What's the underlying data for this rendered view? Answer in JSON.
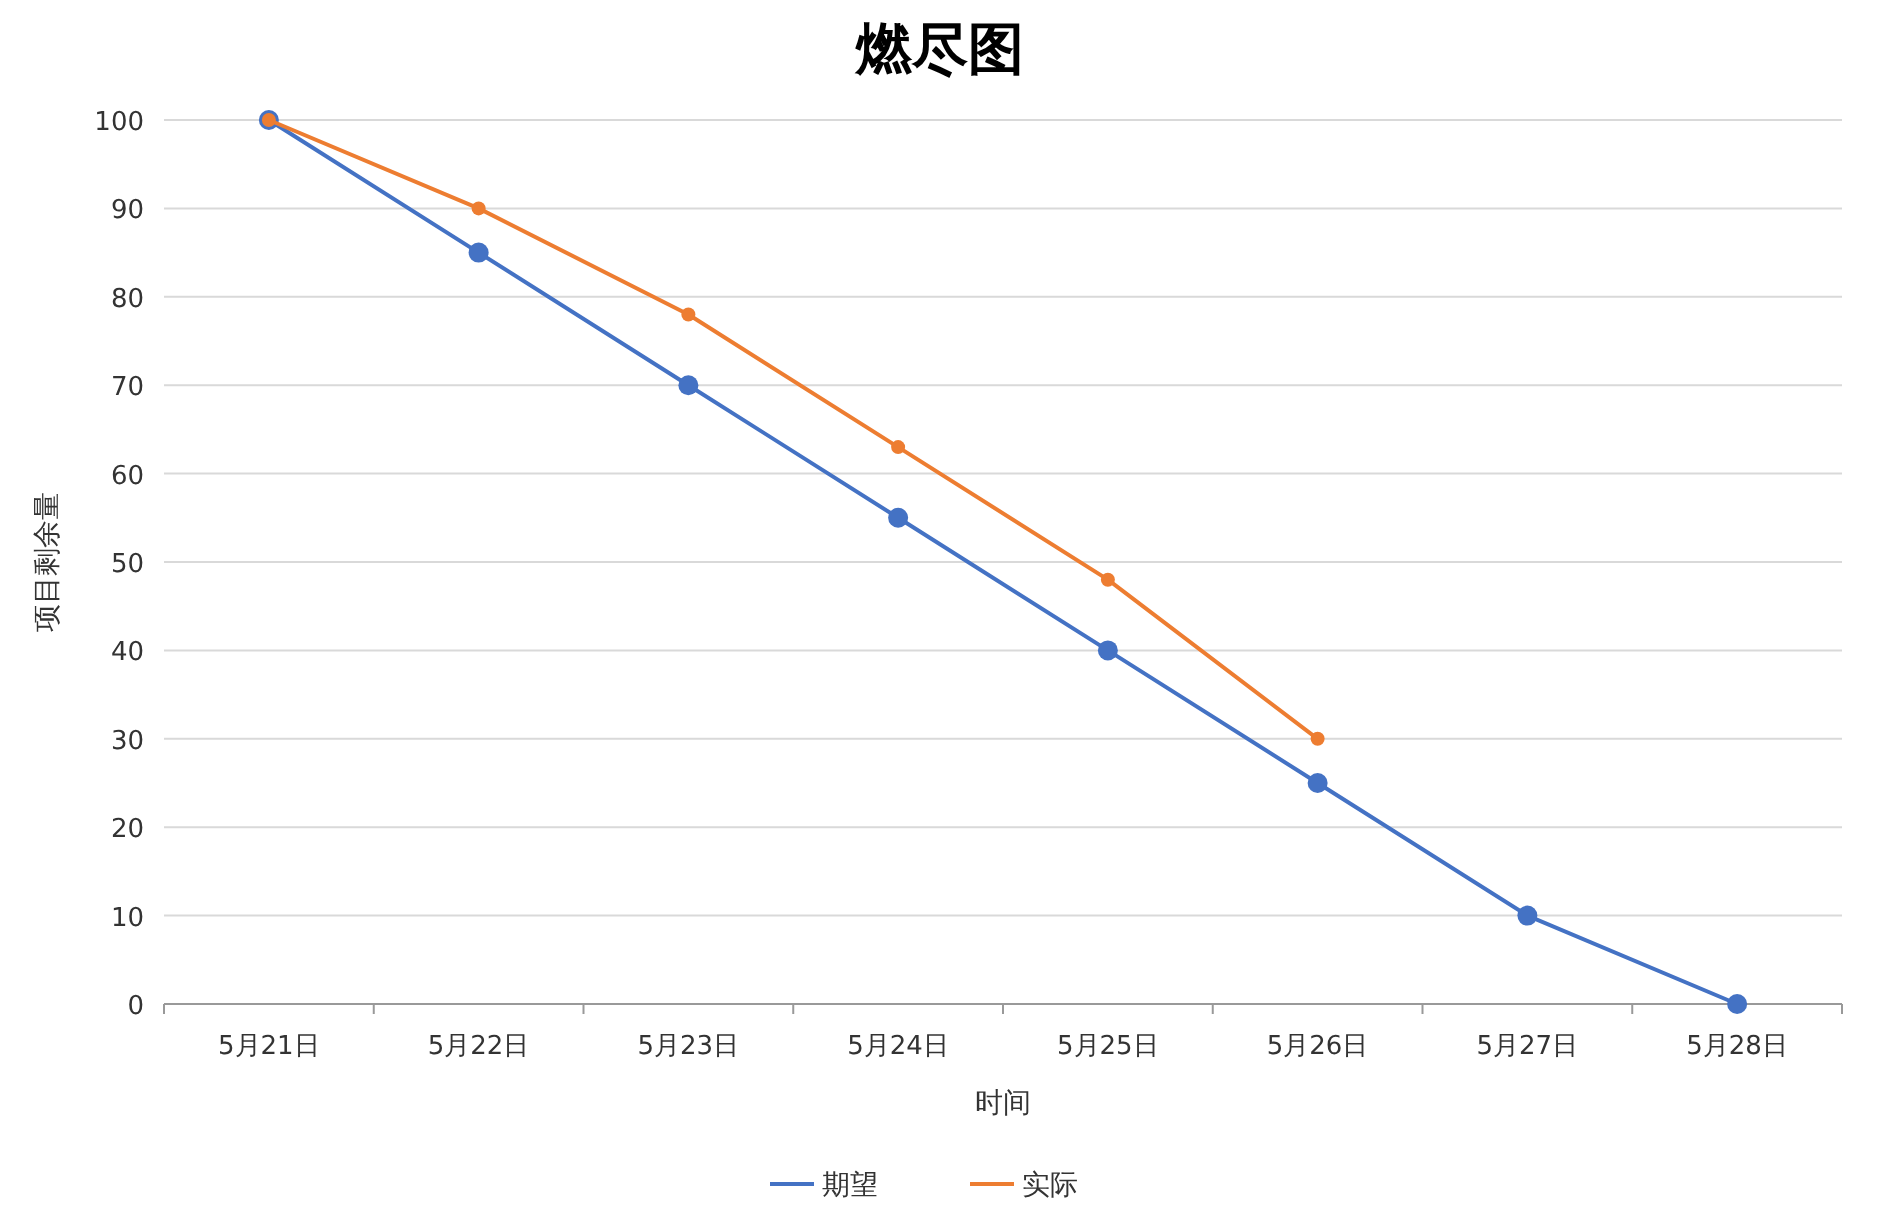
{
  "chart_data": {
    "type": "line",
    "title": "燃尽图",
    "xlabel": "时间",
    "ylabel": "项目剩余量",
    "categories": [
      "5月21日",
      "5月22日",
      "5月23日",
      "5月24日",
      "5月25日",
      "5月26日",
      "5月27日",
      "5月28日"
    ],
    "series": [
      {
        "name": "期望",
        "color": "#4472c4",
        "values": [
          100,
          85,
          70,
          55,
          40,
          25,
          10,
          0
        ]
      },
      {
        "name": "实际",
        "color": "#ed7d31",
        "values": [
          100,
          90,
          78,
          63,
          48,
          30,
          null,
          null
        ]
      }
    ],
    "ylim": [
      0,
      100
    ],
    "yticks": [
      0,
      10,
      20,
      30,
      40,
      50,
      60,
      70,
      80,
      90,
      100
    ],
    "grid": "y",
    "legend": "bottom",
    "marker": "circle",
    "line_style": "solid"
  }
}
